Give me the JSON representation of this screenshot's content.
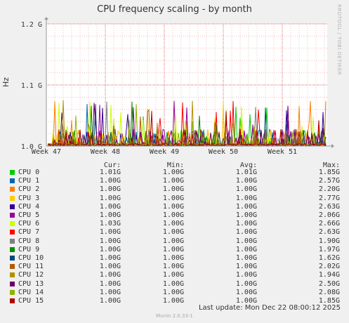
{
  "title": "CPU frequency scaling - by month",
  "watermark": "RRDTOOL / TOBI OETIKER",
  "footer": {
    "last_update": "Last update:  Mon Dec 22 08:00:12 2025",
    "version": "Munin 2.0.33-1"
  },
  "legend_headers": {
    "cur": "Cur:",
    "min": "Min:",
    "avg": "Avg:",
    "max": "Max:"
  },
  "colors": {
    "grid_major": "#e08080",
    "grid_minor": "#f0c0c0",
    "axis": "#999999"
  },
  "chart_data": {
    "type": "line",
    "title": "CPU frequency scaling - by month",
    "ylabel": "Hz",
    "xlabel": "",
    "x_ticks": [
      "Week 47",
      "Week 48",
      "Week 49",
      "Week 50",
      "Week 51"
    ],
    "y_ticks": [
      "1.0 G",
      "1.1 G",
      "1.2 G"
    ],
    "y_tick_values": [
      1.0,
      1.1,
      1.2
    ],
    "ylim": [
      1.0,
      1.2
    ],
    "grid": true,
    "legend_position": "bottom",
    "series": [
      {
        "name": "CPU 0",
        "color": "#00cc00",
        "cur": "1.01G",
        "min": "1.00G",
        "avg": "1.01G",
        "max": "1.85G"
      },
      {
        "name": "CPU 1",
        "color": "#0066b3",
        "cur": "1.00G",
        "min": "1.00G",
        "avg": "1.00G",
        "max": "2.57G"
      },
      {
        "name": "CPU 2",
        "color": "#ff8000",
        "cur": "1.00G",
        "min": "1.00G",
        "avg": "1.00G",
        "max": "2.20G"
      },
      {
        "name": "CPU 3",
        "color": "#ffcc00",
        "cur": "1.00G",
        "min": "1.00G",
        "avg": "1.00G",
        "max": "2.77G"
      },
      {
        "name": "CPU 4",
        "color": "#330099",
        "cur": "1.00G",
        "min": "1.00G",
        "avg": "1.00G",
        "max": "2.63G"
      },
      {
        "name": "CPU 5",
        "color": "#990099",
        "cur": "1.00G",
        "min": "1.00G",
        "avg": "1.00G",
        "max": "2.06G"
      },
      {
        "name": "CPU 6",
        "color": "#ccff00",
        "cur": "1.03G",
        "min": "1.00G",
        "avg": "1.00G",
        "max": "2.66G"
      },
      {
        "name": "CPU 7",
        "color": "#ff0000",
        "cur": "1.00G",
        "min": "1.00G",
        "avg": "1.00G",
        "max": "2.63G"
      },
      {
        "name": "CPU 8",
        "color": "#808080",
        "cur": "1.00G",
        "min": "1.00G",
        "avg": "1.00G",
        "max": "1.90G"
      },
      {
        "name": "CPU 9",
        "color": "#008f00",
        "cur": "1.00G",
        "min": "1.00G",
        "avg": "1.00G",
        "max": "1.97G"
      },
      {
        "name": "CPU 10",
        "color": "#00487d",
        "cur": "1.00G",
        "min": "1.00G",
        "avg": "1.00G",
        "max": "1.62G"
      },
      {
        "name": "CPU 11",
        "color": "#b35a00",
        "cur": "1.00G",
        "min": "1.00G",
        "avg": "1.00G",
        "max": "2.02G"
      },
      {
        "name": "CPU 12",
        "color": "#b38f00",
        "cur": "1.00G",
        "min": "1.00G",
        "avg": "1.00G",
        "max": "1.94G"
      },
      {
        "name": "CPU 13",
        "color": "#6b006b",
        "cur": "1.00G",
        "min": "1.00G",
        "avg": "1.00G",
        "max": "2.50G"
      },
      {
        "name": "CPU 14",
        "color": "#8fb300",
        "cur": "1.00G",
        "min": "1.00G",
        "avg": "1.00G",
        "max": "2.08G"
      },
      {
        "name": "CPU 15",
        "color": "#b30000",
        "cur": "1.00G",
        "min": "1.00G",
        "avg": "1.00G",
        "max": "1.85G"
      }
    ]
  }
}
